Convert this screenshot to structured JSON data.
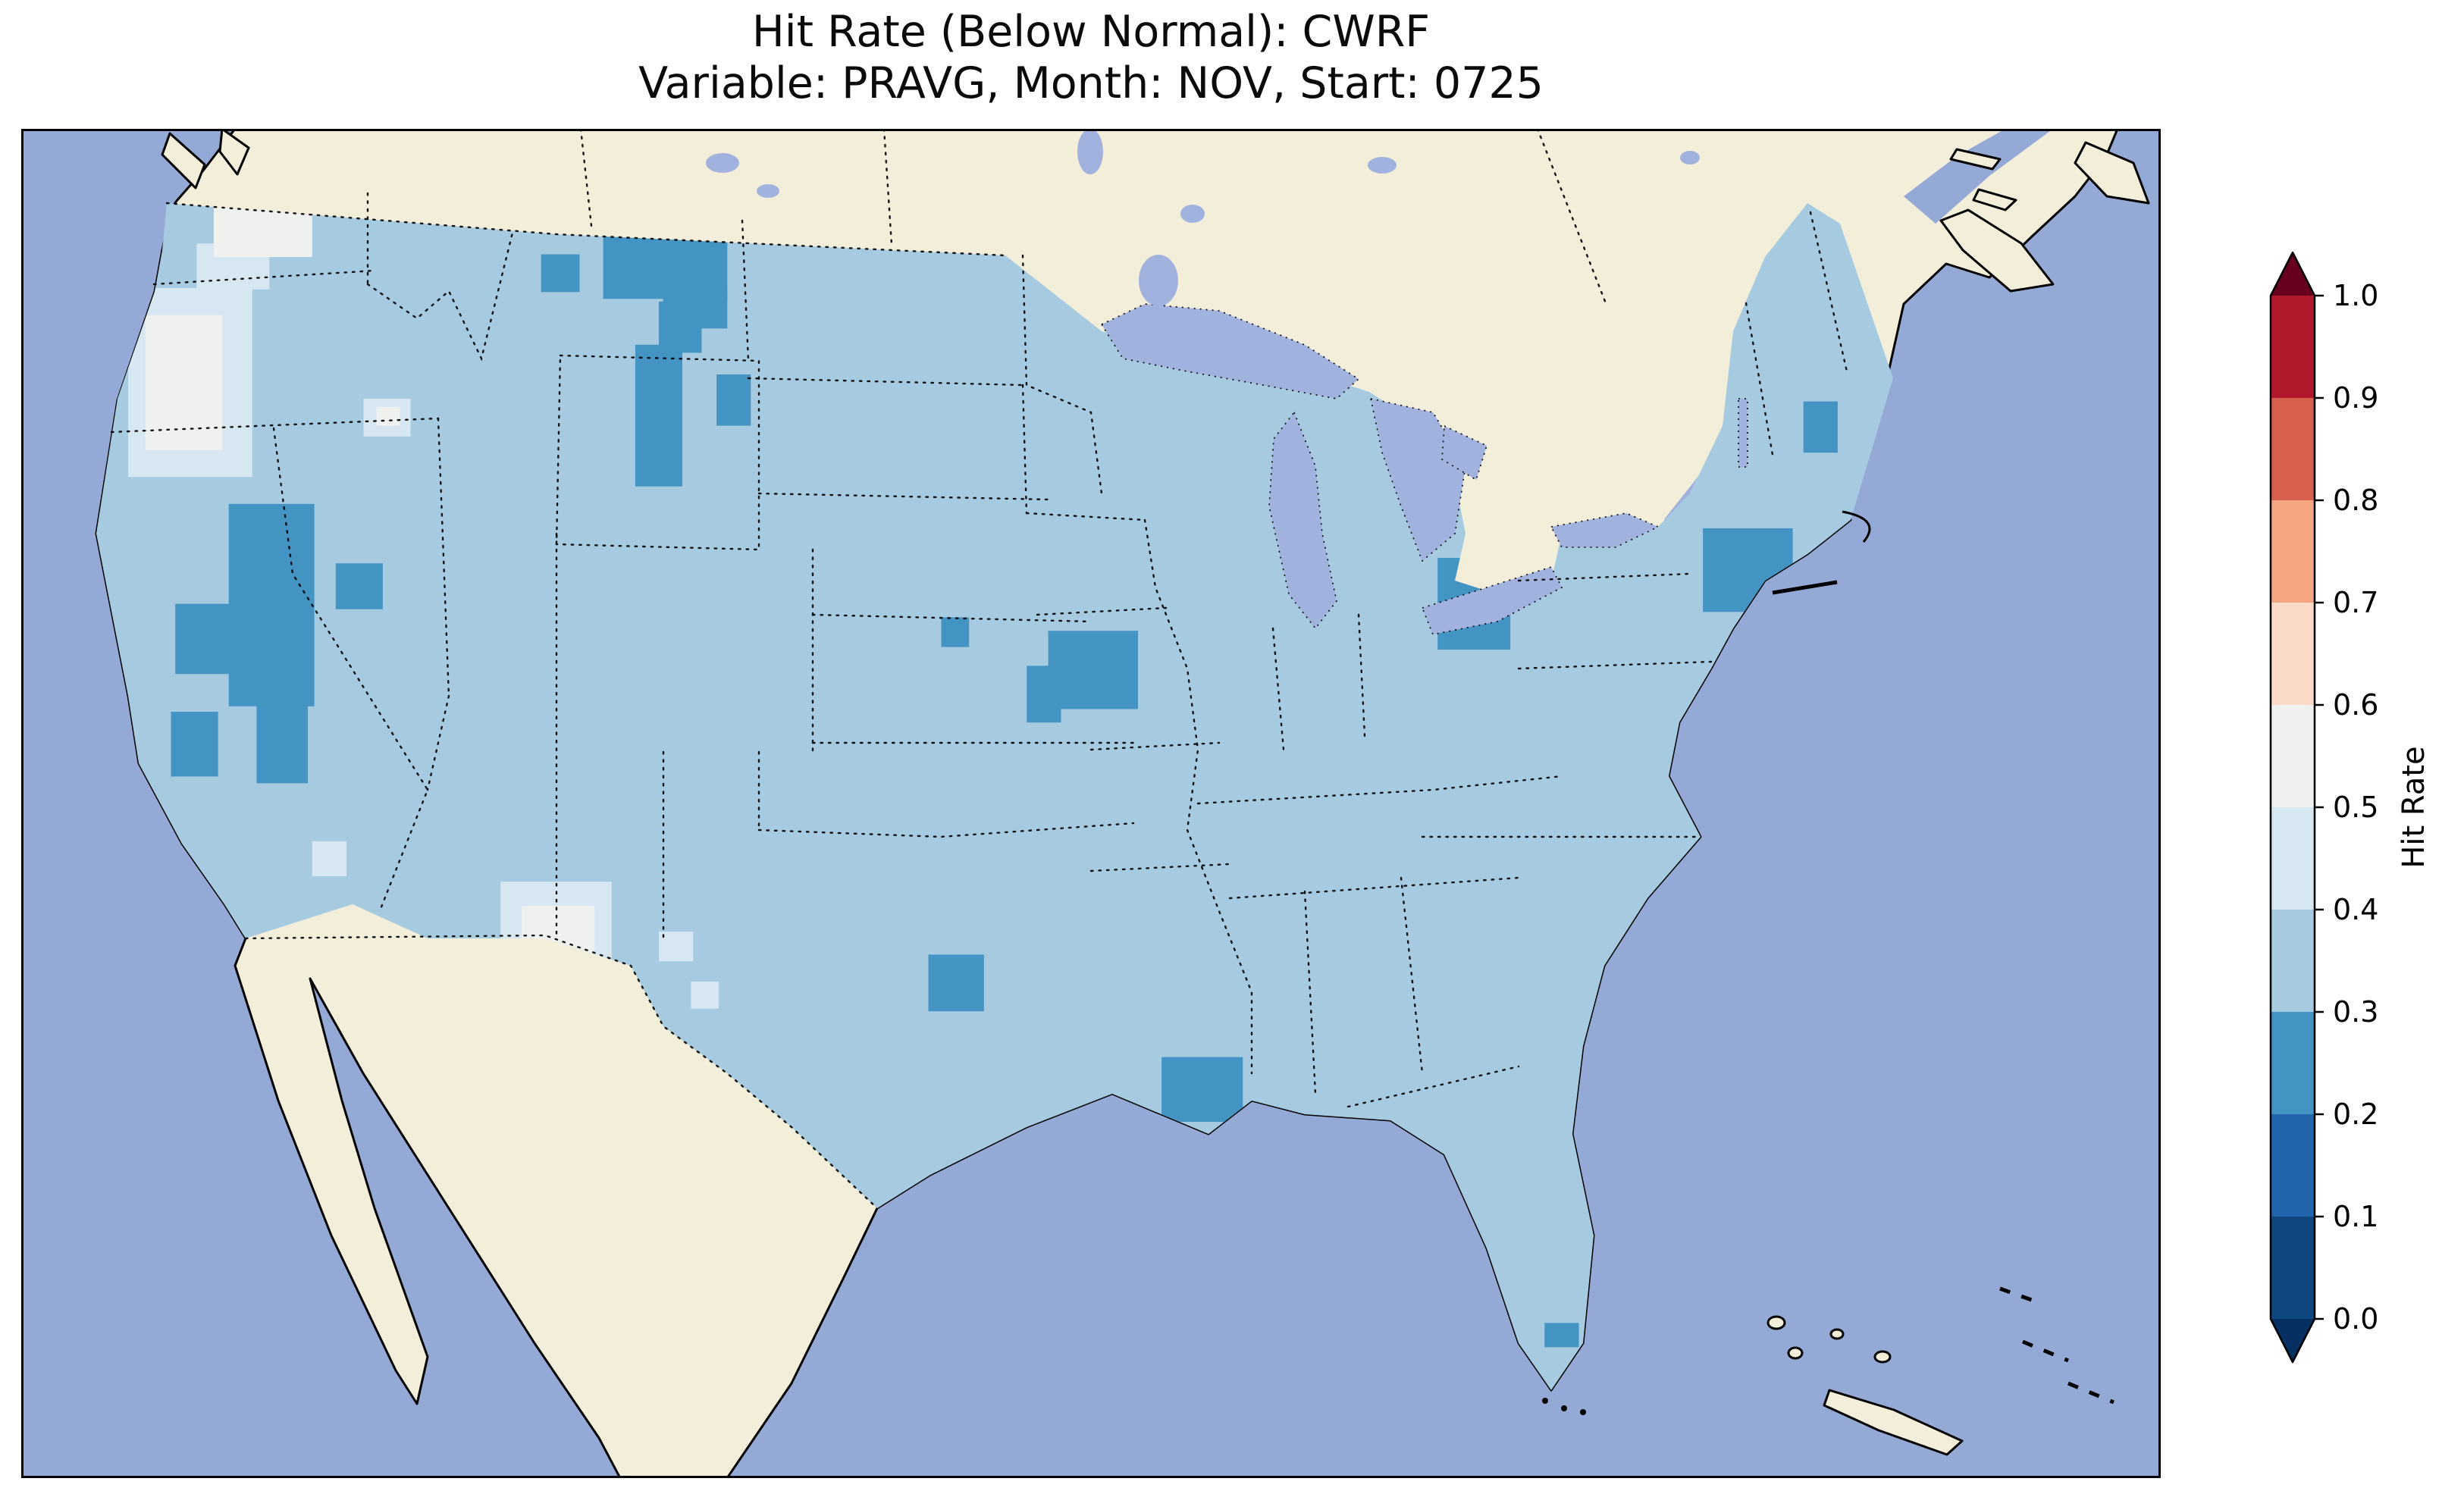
{
  "figure": {
    "title": "Hit Rate (Below Normal): CWRF",
    "subtitle": "Variable: PRAVG, Month: NOV, Start: 0725"
  },
  "chart_data": {
    "type": "heatmap",
    "title": "Hit Rate (Below Normal): CWRF",
    "subtitle": "Variable: PRAVG, Month: NOV, Start: 0725",
    "metric": "Hit Rate",
    "forecast_category": "Below Normal",
    "model": "CWRF",
    "variable": "PRAVG",
    "month": "NOV",
    "start": "0725",
    "map_region": "Contiguous United States",
    "base_band": 3,
    "colorbar": {
      "label": "Hit Rate",
      "orientation": "vertical",
      "range": [
        0.0,
        1.0
      ],
      "extend": "both",
      "ticks": [
        "0.0",
        "0.1",
        "0.2",
        "0.3",
        "0.4",
        "0.5",
        "0.6",
        "0.7",
        "0.8",
        "0.9",
        "1.0"
      ],
      "extend_low_color": "#053061",
      "extend_high_color": "#67001f",
      "bands": [
        {
          "range": [
            0.0,
            0.1
          ],
          "color": "#114781"
        },
        {
          "range": [
            0.1,
            0.2
          ],
          "color": "#2166ac"
        },
        {
          "range": [
            0.2,
            0.3
          ],
          "color": "#4393c3"
        },
        {
          "range": [
            0.3,
            0.4
          ],
          "color": "#a6cbe1"
        },
        {
          "range": [
            0.4,
            0.5
          ],
          "color": "#d7e7f1"
        },
        {
          "range": [
            0.5,
            0.6
          ],
          "color": "#eff1ef"
        },
        {
          "range": [
            0.6,
            0.7
          ],
          "color": "#fbdbc8"
        },
        {
          "range": [
            0.7,
            0.8
          ],
          "color": "#f4a582"
        },
        {
          "range": [
            0.8,
            0.9
          ],
          "color": "#d6604d"
        },
        {
          "range": [
            0.9,
            1.0
          ],
          "color": "#b2182b"
        }
      ]
    },
    "cells": [
      {
        "x": 0.272,
        "y": 0.074,
        "w": 0.058,
        "h": 0.052,
        "band": 2
      },
      {
        "x": 0.3,
        "y": 0.12,
        "w": 0.03,
        "h": 0.028,
        "band": 2
      },
      {
        "x": 0.243,
        "y": 0.093,
        "w": 0.018,
        "h": 0.028,
        "band": 2
      },
      {
        "x": 0.287,
        "y": 0.16,
        "w": 0.022,
        "h": 0.105,
        "band": 2
      },
      {
        "x": 0.298,
        "y": 0.128,
        "w": 0.02,
        "h": 0.038,
        "band": 2
      },
      {
        "x": 0.325,
        "y": 0.182,
        "w": 0.016,
        "h": 0.038,
        "band": 2
      },
      {
        "x": 0.097,
        "y": 0.278,
        "w": 0.04,
        "h": 0.15,
        "band": 2
      },
      {
        "x": 0.11,
        "y": 0.425,
        "w": 0.024,
        "h": 0.06,
        "band": 2
      },
      {
        "x": 0.072,
        "y": 0.352,
        "w": 0.026,
        "h": 0.052,
        "band": 2
      },
      {
        "x": 0.07,
        "y": 0.432,
        "w": 0.022,
        "h": 0.048,
        "band": 2
      },
      {
        "x": 0.147,
        "y": 0.322,
        "w": 0.022,
        "h": 0.034,
        "band": 2
      },
      {
        "x": 0.48,
        "y": 0.372,
        "w": 0.042,
        "h": 0.058,
        "band": 2
      },
      {
        "x": 0.47,
        "y": 0.398,
        "w": 0.016,
        "h": 0.042,
        "band": 2
      },
      {
        "x": 0.43,
        "y": 0.362,
        "w": 0.013,
        "h": 0.022,
        "band": 2
      },
      {
        "x": 0.424,
        "y": 0.612,
        "w": 0.026,
        "h": 0.042,
        "band": 2
      },
      {
        "x": 0.533,
        "y": 0.688,
        "w": 0.038,
        "h": 0.048,
        "band": 2
      },
      {
        "x": 0.662,
        "y": 0.318,
        "w": 0.034,
        "h": 0.068,
        "band": 2
      },
      {
        "x": 0.786,
        "y": 0.296,
        "w": 0.042,
        "h": 0.062,
        "band": 2
      },
      {
        "x": 0.833,
        "y": 0.202,
        "w": 0.016,
        "h": 0.038,
        "band": 2
      },
      {
        "x": 0.712,
        "y": 0.885,
        "w": 0.016,
        "h": 0.018,
        "band": 2
      },
      {
        "x": 0.082,
        "y": 0.085,
        "w": 0.034,
        "h": 0.034,
        "band": 4
      },
      {
        "x": 0.05,
        "y": 0.118,
        "w": 0.058,
        "h": 0.14,
        "band": 4
      },
      {
        "x": 0.16,
        "y": 0.2,
        "w": 0.022,
        "h": 0.028,
        "band": 4
      },
      {
        "x": 0.224,
        "y": 0.558,
        "w": 0.052,
        "h": 0.105,
        "band": 4
      },
      {
        "x": 0.298,
        "y": 0.595,
        "w": 0.016,
        "h": 0.022,
        "band": 4
      },
      {
        "x": 0.313,
        "y": 0.632,
        "w": 0.013,
        "h": 0.02,
        "band": 4
      },
      {
        "x": 0.136,
        "y": 0.528,
        "w": 0.016,
        "h": 0.026,
        "band": 4
      },
      {
        "x": 0.284,
        "y": 0.728,
        "w": 0.014,
        "h": 0.022,
        "band": 4
      },
      {
        "x": 0.09,
        "y": 0.05,
        "w": 0.046,
        "h": 0.045,
        "band": 5
      },
      {
        "x": 0.058,
        "y": 0.138,
        "w": 0.036,
        "h": 0.1,
        "band": 5
      },
      {
        "x": 0.234,
        "y": 0.576,
        "w": 0.034,
        "h": 0.075,
        "band": 5
      },
      {
        "x": 0.166,
        "y": 0.206,
        "w": 0.011,
        "h": 0.014,
        "band": 5
      }
    ]
  },
  "map": {
    "colors": {
      "ocean": "#95a9d6",
      "land": "#f2eeda",
      "lake": "#a2b2de",
      "coast": "#000000"
    }
  }
}
